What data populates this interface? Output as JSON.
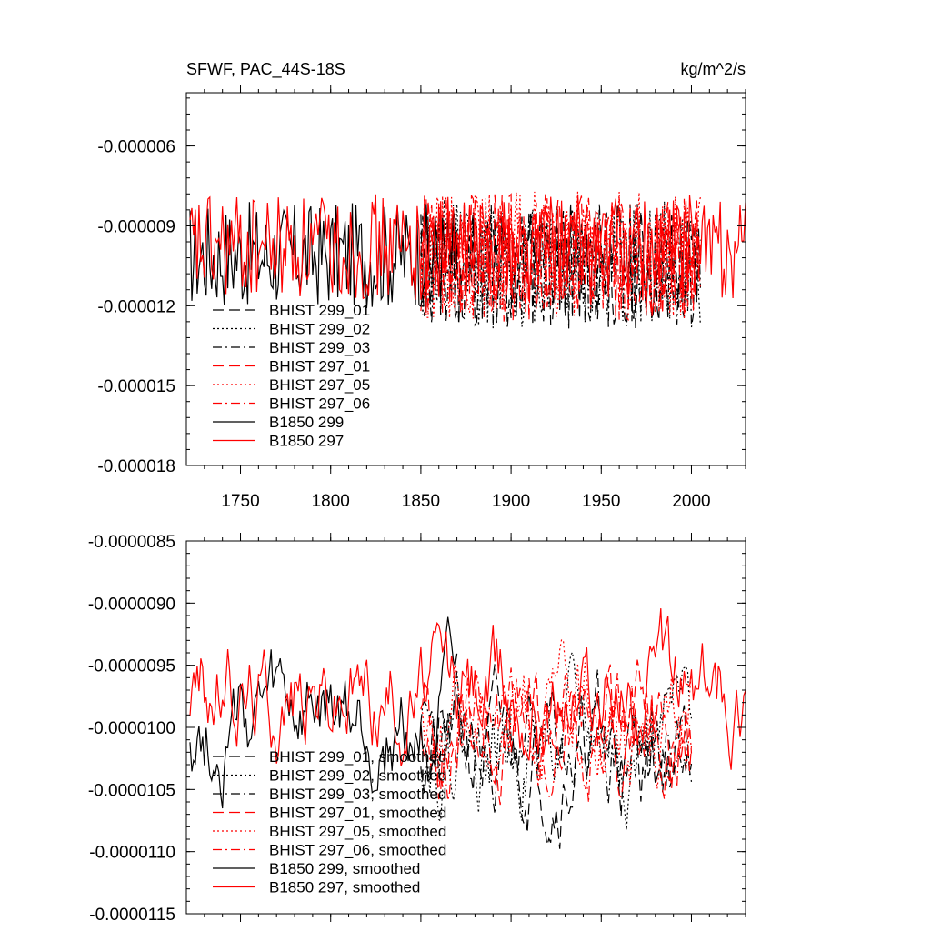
{
  "chart_data": [
    {
      "type": "line",
      "title": "SFWF, PAC_44S-18S",
      "units": "kg/m^2/s",
      "xlim": [
        1720,
        2030
      ],
      "ylim": [
        -1.8e-05,
        -4e-06
      ],
      "yticks": [
        -6e-06,
        -9e-06,
        -1.2e-05,
        -1.5e-05,
        -1.8e-05
      ],
      "ytick_labels": [
        "-0.000006",
        "-0.000009",
        "-0.000012",
        "-0.000015",
        "-0.000018"
      ],
      "xticks": [
        1750,
        1800,
        1850,
        1900,
        1950,
        2000
      ],
      "xtick_labels": [
        "1750",
        "1800",
        "1850",
        "1900",
        "1950",
        "2000"
      ],
      "legend_position": "lower-left",
      "series": [
        {
          "name": "BHIST 299_01",
          "color": "#000000",
          "dash": "long-dash",
          "start": 1850,
          "end": 2005,
          "mean": -1.05e-05,
          "amp": 2.4e-06,
          "seed": 11
        },
        {
          "name": "BHIST 299_02",
          "color": "#000000",
          "dash": "dotted",
          "start": 1850,
          "end": 2005,
          "mean": -1.04e-05,
          "amp": 2.4e-06,
          "seed": 12
        },
        {
          "name": "BHIST 299_03",
          "color": "#000000",
          "dash": "dash-dot",
          "start": 1850,
          "end": 2005,
          "mean": -1.05e-05,
          "amp": 2.4e-06,
          "seed": 13
        },
        {
          "name": "BHIST 297_01",
          "color": "#ff0000",
          "dash": "long-dash",
          "start": 1850,
          "end": 2005,
          "mean": -1.02e-05,
          "amp": 2.4e-06,
          "seed": 14
        },
        {
          "name": "BHIST 297_05",
          "color": "#ff0000",
          "dash": "dotted",
          "start": 1850,
          "end": 2005,
          "mean": -1.01e-05,
          "amp": 2.4e-06,
          "seed": 15
        },
        {
          "name": "BHIST 297_06",
          "color": "#ff0000",
          "dash": "dash-dot",
          "start": 1850,
          "end": 2005,
          "mean": -1.02e-05,
          "amp": 2.4e-06,
          "seed": 16
        },
        {
          "name": "B1850 299",
          "color": "#000000",
          "dash": "solid",
          "start": 1722,
          "end": 1870,
          "mean": -1.01e-05,
          "amp": 2e-06,
          "seed": 17
        },
        {
          "name": "B1850 297",
          "color": "#ff0000",
          "dash": "solid",
          "start": 1722,
          "end": 2030,
          "mean": -9.8e-06,
          "amp": 2e-06,
          "seed": 18
        }
      ]
    },
    {
      "type": "line",
      "title": "",
      "units": "",
      "xlim": [
        1720,
        2030
      ],
      "ylim": [
        -1.15e-05,
        -8.5e-06
      ],
      "yticks": [
        -8.5e-06,
        -9e-06,
        -9.5e-06,
        -1e-05,
        -1.05e-05,
        -1.1e-05,
        -1.15e-05
      ],
      "ytick_labels": [
        "-0.0000085",
        "-0.0000090",
        "-0.0000095",
        "-0.0000100",
        "-0.0000105",
        "-0.0000110",
        "-0.0000115"
      ],
      "xticks": [
        1750,
        1800,
        1850,
        1900,
        1950,
        2000
      ],
      "xtick_labels": [],
      "legend_position": "lower-left",
      "series": [
        {
          "name": "BHIST 299_01, smoothed",
          "color": "#000000",
          "dash": "long-dash",
          "start": 1850,
          "end": 2000,
          "mean": -1.02e-05,
          "amp": 6e-07,
          "seed": 21
        },
        {
          "name": "BHIST 299_02, smoothed",
          "color": "#000000",
          "dash": "dotted",
          "start": 1850,
          "end": 2000,
          "mean": -1.01e-05,
          "amp": 6e-07,
          "seed": 22
        },
        {
          "name": "BHIST 299_03, smoothed",
          "color": "#000000",
          "dash": "dash-dot",
          "start": 1850,
          "end": 2000,
          "mean": -1.02e-05,
          "amp": 6e-07,
          "seed": 23
        },
        {
          "name": "BHIST 297_01, smoothed",
          "color": "#ff0000",
          "dash": "long-dash",
          "start": 1850,
          "end": 2000,
          "mean": -1e-05,
          "amp": 6e-07,
          "seed": 24
        },
        {
          "name": "BHIST 297_05, smoothed",
          "color": "#ff0000",
          "dash": "dotted",
          "start": 1850,
          "end": 2000,
          "mean": -9.9e-06,
          "amp": 6e-07,
          "seed": 25
        },
        {
          "name": "BHIST 297_06, smoothed",
          "color": "#ff0000",
          "dash": "dash-dot",
          "start": 1850,
          "end": 2000,
          "mean": -1e-05,
          "amp": 6e-07,
          "seed": 26
        },
        {
          "name": "B1850 299, smoothed",
          "color": "#000000",
          "dash": "solid",
          "start": 1722,
          "end": 1870,
          "mean": -1e-05,
          "amp": 6e-07,
          "seed": 27
        },
        {
          "name": "B1850 297, smoothed",
          "color": "#ff0000",
          "dash": "solid",
          "start": 1722,
          "end": 2030,
          "mean": -9.7e-06,
          "amp": 6e-07,
          "seed": 28
        }
      ]
    }
  ]
}
